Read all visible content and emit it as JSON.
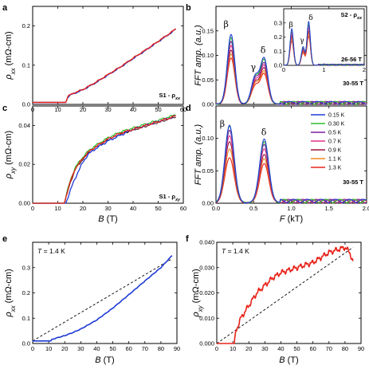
{
  "figure": {
    "panel_letters": [
      "a",
      "b",
      "c",
      "d",
      "e",
      "f"
    ]
  },
  "chart_data": [
    {
      "panel": "a",
      "type": "line",
      "xlabel": "",
      "ylabel": "ρxx (mΩ-cm)",
      "ylabel_main": "ρ",
      "ylabel_sub": "xx",
      "ylabel_unit": "(mΩ-cm)",
      "xlim": [
        0,
        60
      ],
      "ylim": [
        0,
        0.25
      ],
      "xticks": [
        "0",
        "10",
        "20",
        "30",
        "40",
        "50",
        "60"
      ],
      "yticks": [
        "0.0",
        "0.1",
        "0.2"
      ],
      "annotation": "S1 - ρxx",
      "ann_main": "S1 - ρ",
      "ann_sub": "xx",
      "series": [
        {
          "color": "#1f3bd6",
          "x": [
            0,
            13.4,
            13.6,
            14,
            15,
            18,
            20,
            25,
            30,
            35,
            40,
            45,
            50,
            55,
            57
          ],
          "y": [
            0.005,
            0.005,
            0.014,
            0.019,
            0.024,
            0.032,
            0.037,
            0.055,
            0.075,
            0.095,
            0.117,
            0.138,
            0.16,
            0.182,
            0.192
          ]
        },
        {
          "color": "#e8231a",
          "x": [
            0,
            13.4,
            13.6,
            14,
            15,
            18,
            20,
            25,
            30,
            35,
            40,
            45,
            50,
            55,
            57
          ],
          "y": [
            0.005,
            0.005,
            0.015,
            0.02,
            0.025,
            0.033,
            0.038,
            0.056,
            0.076,
            0.096,
            0.118,
            0.139,
            0.161,
            0.183,
            0.193
          ]
        }
      ]
    },
    {
      "panel": "b",
      "type": "line",
      "xlabel": "",
      "ylabel": "FFT amp. (a.u.)",
      "xlim": [
        0,
        2.0
      ],
      "ylim": [
        0,
        0.2
      ],
      "xticks": [],
      "yticks": [
        "0.00",
        "0.05",
        "0.10",
        "0.15"
      ],
      "peak_labels": [
        "β",
        "γ",
        "δ"
      ],
      "field_window": "30-55 T",
      "inset": {
        "title": "S2 - ρxx",
        "title_main": "S2 - ρ",
        "title_sub": "xx",
        "field_window": "26-56 T",
        "xticks": [
          "0",
          "1",
          "2"
        ],
        "yticks": [
          "0.0",
          "0.1",
          "0.2",
          "0.3"
        ],
        "peak_labels": [
          "β",
          "γ",
          "δ"
        ],
        "peaks": [
          {
            "name": "β",
            "F": 0.2,
            "amp_max": 0.26
          },
          {
            "name": "γ",
            "F": 0.48,
            "amp_max": 0.13
          },
          {
            "name": "δ",
            "F": 0.62,
            "amp_max": 0.31
          }
        ]
      },
      "peaks": [
        {
          "name": "β",
          "F": 0.2,
          "amp_max": 0.142
        },
        {
          "name": "γ",
          "F": 0.52,
          "amp_max": 0.056
        },
        {
          "name": "δ",
          "F": 0.64,
          "amp_max": 0.092
        }
      ]
    },
    {
      "panel": "c",
      "type": "line",
      "xlabel": "B (T)",
      "ylabel": "ρxy (mΩ-cm)",
      "xlabel_main": "B",
      "xlabel_unit": "(T)",
      "ylabel_main": "ρ",
      "ylabel_sub": "xy",
      "ylabel_unit": "(mΩ-cm)",
      "xlim": [
        0,
        60
      ],
      "ylim": [
        0,
        0.05
      ],
      "xticks": [
        "0",
        "10",
        "20",
        "30",
        "40",
        "50",
        "60"
      ],
      "yticks": [
        "0.00",
        "0.02",
        "0.04"
      ],
      "annotation": "S1 - ρxy",
      "ann_main": "S1 - ρ",
      "ann_sub": "xy",
      "series": [
        {
          "color": "#1f3bd6",
          "x": [
            0,
            13.2,
            14,
            16,
            18,
            20,
            22,
            25,
            30,
            35,
            40,
            45,
            50,
            55,
            57
          ],
          "y": [
            0.0,
            0.0,
            0.003,
            0.01,
            0.016,
            0.021,
            0.025,
            0.028,
            0.032,
            0.035,
            0.038,
            0.04,
            0.042,
            0.044,
            0.045
          ]
        },
        {
          "color": "#e8231a",
          "x": [
            0,
            12.6,
            13.4,
            15,
            17,
            20,
            22,
            25,
            30,
            35,
            40,
            45,
            50,
            55,
            57
          ],
          "y": [
            0.0,
            0.0,
            0.004,
            0.011,
            0.018,
            0.023,
            0.026,
            0.029,
            0.033,
            0.036,
            0.038,
            0.04,
            0.042,
            0.044,
            0.045
          ]
        }
      ]
    },
    {
      "panel": "d",
      "type": "line",
      "xlabel": "F (kT)",
      "ylabel": "FFT amp. (a.u.)",
      "xlabel_main": "F",
      "xlabel_unit": "(kT)",
      "xlim": [
        0,
        2.0
      ],
      "ylim": [
        0,
        0.15
      ],
      "xticks": [
        "0.0",
        "0.5",
        "1.0",
        "1.5",
        "2.0"
      ],
      "yticks": [
        "0.00",
        "0.05",
        "0.10"
      ],
      "peak_labels": [
        "β",
        "δ"
      ],
      "field_window": "30-55 T",
      "legend": {
        "position": "right",
        "entries": [
          "0.15 K",
          "0.30 K",
          "0.5 K",
          "0.7 K",
          "0.9 K",
          "1.1 K",
          "1.3 K"
        ]
      },
      "series": [
        {
          "name": "0.15 K",
          "color": "#1f3bd6",
          "beta": 0.12,
          "delta": 0.098
        },
        {
          "name": "0.30 K",
          "color": "#2ebd2e",
          "beta": 0.118,
          "delta": 0.095
        },
        {
          "name": "0.5 K",
          "color": "#7a1fa2",
          "beta": 0.112,
          "delta": 0.09
        },
        {
          "name": "0.7 K",
          "color": "#e0308c",
          "beta": 0.104,
          "delta": 0.083
        },
        {
          "name": "0.9 K",
          "color": "#a1153b",
          "beta": 0.094,
          "delta": 0.075
        },
        {
          "name": "1.1 K",
          "color": "#f08a1c",
          "beta": 0.083,
          "delta": 0.068
        },
        {
          "name": "1.3 K",
          "color": "#e8231a",
          "beta": 0.07,
          "delta": 0.06
        }
      ]
    },
    {
      "panel": "e",
      "type": "line",
      "xlabel": "B (T)",
      "ylabel": "ρxx (mΩ-cm)",
      "xlabel_main": "B",
      "xlabel_unit": "(T)",
      "ylabel_main": "ρ",
      "ylabel_sub": "xx",
      "ylabel_unit": "(mΩ-cm)",
      "xlim": [
        0,
        90
      ],
      "ylim": [
        0,
        0.4
      ],
      "xticks": [
        "0",
        "10",
        "20",
        "30",
        "40",
        "50",
        "60",
        "70",
        "80",
        "90"
      ],
      "yticks": [
        "0.0",
        "0.1",
        "0.2",
        "0.3"
      ],
      "annotation": "T = 1.4 K",
      "ann_main": "T",
      "ann_rest": " = 1.4 K",
      "series": [
        {
          "color": "#1f3bd6",
          "x": [
            0,
            11.5,
            12,
            15,
            20,
            25,
            30,
            40,
            50,
            60,
            70,
            80,
            87
          ],
          "y": [
            0.01,
            0.01,
            0.016,
            0.022,
            0.031,
            0.043,
            0.057,
            0.093,
            0.14,
            0.193,
            0.247,
            0.3,
            0.348
          ]
        }
      ],
      "fit_line": {
        "style": "dashed",
        "x": [
          0,
          87
        ],
        "y": [
          0.01,
          0.335
        ]
      }
    },
    {
      "panel": "f",
      "type": "line",
      "xlabel": "B (T)",
      "ylabel": "ρxy (mΩ-cm)",
      "xlabel_main": "B",
      "xlabel_unit": "(T)",
      "ylabel_main": "ρ",
      "ylabel_sub": "xy",
      "ylabel_unit": "(mΩ-cm)",
      "xlim": [
        0,
        90
      ],
      "ylim": [
        0,
        0.04
      ],
      "xticks": [
        "0",
        "10",
        "20",
        "30",
        "40",
        "50",
        "60",
        "70",
        "80",
        "90"
      ],
      "yticks": [
        "0.000",
        "0.010",
        "0.020",
        "0.030",
        "0.040"
      ],
      "annotation": "T = 1.4 K",
      "ann_main": "T",
      "ann_rest": " = 1.4 K",
      "series": [
        {
          "color": "#e8231a",
          "x": [
            0,
            11,
            12,
            15,
            20,
            25,
            30,
            35,
            40,
            45,
            50,
            55,
            60,
            65,
            70,
            75,
            80,
            83,
            85
          ],
          "y": [
            0.0,
            0.0,
            0.005,
            0.01,
            0.015,
            0.02,
            0.023,
            0.026,
            0.028,
            0.029,
            0.03,
            0.031,
            0.032,
            0.034,
            0.036,
            0.037,
            0.038,
            0.036,
            0.032
          ]
        }
      ],
      "fit_line": {
        "style": "dashed",
        "x": [
          0,
          85
        ],
        "y": [
          0.0,
          0.038
        ]
      }
    }
  ]
}
